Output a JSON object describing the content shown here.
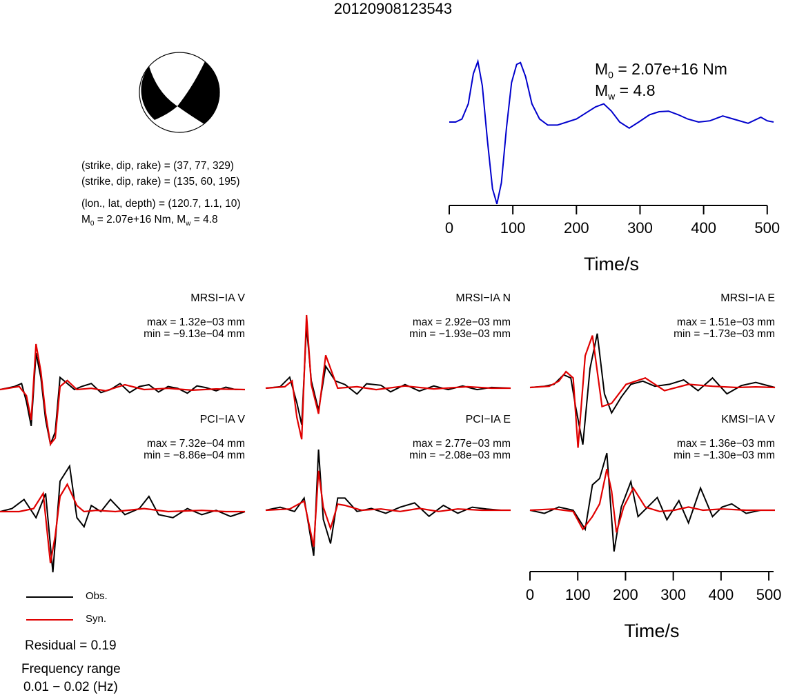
{
  "title": "20120908123543",
  "mechanism": {
    "planes": [
      {
        "strike": 37,
        "dip": 77,
        "rake": 329
      },
      {
        "strike": 135,
        "dip": 60,
        "rake": 195
      }
    ]
  },
  "info": {
    "plane1": "(strike, dip, rake) = (37, 77, 329)",
    "plane2": "(strike, dip, rake) = (135, 60, 195)",
    "location": "(lon., lat, depth) = (120.7, 1.1, 10)",
    "moment_prefix": "M",
    "moment_sub": "0",
    "moment_mid": " = 2.07e+16 Nm, M",
    "mw_sub": "w",
    "mw_value": " = 4.8"
  },
  "stf_labels": {
    "m0_prefix": "M",
    "m0_sub": "0",
    "m0_value": " = 2.07e+16 Nm",
    "mw_prefix": "M",
    "mw_sub": "w",
    "mw_value": " = 4.8"
  },
  "waveforms": [
    {
      "station": "MRSI−IA V",
      "max": "max = 1.32e−03 mm",
      "min": "min = −9.13e−04 mm"
    },
    {
      "station": "MRSI−IA N",
      "max": "max = 2.92e−03 mm",
      "min": "min = −1.93e−03 mm"
    },
    {
      "station": "MRSI−IA E",
      "max": "max = 1.51e−03 mm",
      "min": "min = −1.73e−03 mm"
    },
    {
      "station": "PCI−IA V",
      "max": "max = 7.32e−04 mm",
      "min": "min = −8.86e−04 mm"
    },
    {
      "station": "PCI−IA E",
      "max": "max = 2.77e−03 mm",
      "min": "min = −2.08e−03 mm"
    },
    {
      "station": "KMSI−IA V",
      "max": "max = 1.36e−03 mm",
      "min": "min = −1.30e−03 mm"
    }
  ],
  "legend": {
    "obs": "Obs.",
    "syn": "Syn."
  },
  "residual": "Residual = 0.19",
  "frequency_title": "Frequency range",
  "frequency_range": "0.01 − 0.02 (Hz)",
  "colors": {
    "observed": "#000000",
    "synthetic": "#e00000",
    "stf": "#0000cc",
    "beachball_fill": "#000000"
  },
  "chart_data": [
    {
      "type": "line",
      "title": "",
      "xlabel": "Time/s",
      "ylabel": "",
      "xlim": [
        0,
        510
      ],
      "xticks": [
        0,
        100,
        200,
        300,
        400,
        500
      ],
      "series": [
        {
          "values_x": [
            0,
            10,
            20,
            30,
            38,
            45,
            52,
            60,
            68,
            75,
            82,
            90,
            98,
            106,
            112,
            120,
            130,
            142,
            155,
            170,
            185,
            200,
            215,
            230,
            243,
            255,
            268,
            283,
            298,
            315,
            330,
            345,
            360,
            375,
            392,
            410,
            430,
            450,
            470,
            490,
            500,
            510
          ],
          "values_y": [
            0,
            0,
            0.05,
            0.3,
            0.8,
            1.0,
            0.6,
            -0.3,
            -1.1,
            -1.35,
            -1.0,
            -0.1,
            0.65,
            0.95,
            0.98,
            0.75,
            0.3,
            0.05,
            -0.05,
            -0.05,
            0.0,
            0.05,
            0.15,
            0.25,
            0.3,
            0.18,
            0.0,
            -0.1,
            0.0,
            0.12,
            0.17,
            0.18,
            0.12,
            0.05,
            0.0,
            0.02,
            0.1,
            0.04,
            -0.02,
            0.08,
            0.02,
            0.0
          ]
        }
      ]
    },
    {
      "type": "line",
      "title": "",
      "xlabel": "Time/s",
      "ylabel": "",
      "xlim": [
        0,
        510
      ],
      "xticks": [
        0,
        100,
        200,
        300,
        400,
        500
      ],
      "panels": [
        {
          "station": "MRSI−IA V",
          "obs_x": [
            0,
            30,
            45,
            55,
            65,
            75,
            85,
            95,
            105,
            115,
            125,
            140,
            155,
            170,
            190,
            210,
            230,
            250,
            270,
            290,
            310,
            330,
            350,
            370,
            390,
            410,
            430,
            450,
            470,
            490,
            510
          ],
          "obs_y": [
            0,
            0.05,
            0.1,
            -0.2,
            -0.6,
            0.6,
            0.2,
            -0.5,
            -0.9,
            -0.7,
            0.2,
            0.1,
            0.0,
            0.05,
            0.1,
            -0.05,
            0.0,
            0.1,
            -0.05,
            0.05,
            0.08,
            -0.04,
            0.05,
            0.02,
            -0.06,
            0.06,
            0.03,
            -0.02,
            0.04,
            0.0,
            0.0
          ],
          "syn_x": [
            0,
            40,
            55,
            65,
            75,
            85,
            95,
            105,
            115,
            125,
            140,
            160,
            190,
            220,
            260,
            300,
            350,
            400,
            450,
            510
          ],
          "syn_y": [
            0,
            0.05,
            -0.1,
            -0.5,
            0.75,
            0.3,
            -0.4,
            -0.9,
            -0.8,
            0.05,
            0.15,
            0.0,
            0.02,
            -0.02,
            0.08,
            0.0,
            0.02,
            -0.01,
            0.01,
            0.0
          ]
        },
        {
          "station": "MRSI−IA N",
          "obs_x": [
            0,
            30,
            50,
            65,
            75,
            85,
            95,
            110,
            125,
            145,
            165,
            190,
            210,
            240,
            260,
            290,
            320,
            350,
            380,
            410,
            440,
            470,
            510
          ],
          "obs_y": [
            0,
            0.02,
            0.15,
            -0.2,
            -0.5,
            0.85,
            0.1,
            -0.3,
            0.3,
            0.1,
            0.05,
            -0.08,
            0.06,
            0.04,
            -0.05,
            0.05,
            -0.04,
            0.03,
            -0.02,
            0.03,
            -0.02,
            0.01,
            0.0
          ],
          "syn_x": [
            0,
            40,
            55,
            65,
            75,
            85,
            95,
            110,
            125,
            150,
            190,
            230,
            290,
            350,
            420,
            470,
            510
          ],
          "syn_y": [
            0,
            0.02,
            0.1,
            -0.4,
            -0.7,
            1.0,
            0.05,
            -0.35,
            0.45,
            0.0,
            0.02,
            -0.02,
            0.03,
            -0.01,
            0.02,
            0.0,
            0.0
          ],
          "offset_x": 385
        },
        {
          "station": "MRSI−IA E",
          "obs_x": [
            0,
            30,
            50,
            70,
            85,
            95,
            110,
            125,
            140,
            155,
            170,
            190,
            210,
            235,
            260,
            290,
            320,
            350,
            380,
            410,
            440,
            470,
            510
          ],
          "obs_y": [
            0,
            0.02,
            0.05,
            0.2,
            0.15,
            -0.3,
            -0.9,
            0.3,
            0.85,
            -0.1,
            -0.4,
            -0.15,
            0.05,
            0.1,
            0.02,
            0.05,
            0.12,
            -0.05,
            0.15,
            -0.1,
            0.03,
            0.08,
            0.0
          ],
          "syn_x": [
            0,
            40,
            60,
            75,
            90,
            100,
            115,
            130,
            150,
            170,
            200,
            240,
            280,
            330,
            380,
            430,
            470,
            510
          ],
          "syn_y": [
            0,
            0.02,
            0.1,
            0.25,
            0.15,
            -0.95,
            0.5,
            0.82,
            -0.3,
            -0.25,
            0.05,
            0.15,
            -0.05,
            0.05,
            0.02,
            0.0,
            0.01,
            0.0
          ]
        },
        {
          "station": "PCI−IA V",
          "obs_x": [
            0,
            25,
            50,
            75,
            95,
            110,
            125,
            145,
            160,
            175,
            190,
            210,
            230,
            260,
            290,
            310,
            330,
            360,
            390,
            420,
            450,
            480,
            510
          ],
          "obs_y": [
            0,
            0.05,
            0.2,
            -0.1,
            0.3,
            -1.0,
            0.5,
            0.75,
            -0.1,
            -0.25,
            0.1,
            0.0,
            0.2,
            -0.05,
            0.05,
            0.25,
            -0.05,
            -0.1,
            0.05,
            -0.05,
            0.02,
            -0.08,
            0.0
          ],
          "syn_x": [
            0,
            40,
            70,
            90,
            105,
            115,
            125,
            140,
            160,
            175,
            200,
            240,
            300,
            350,
            420,
            470,
            510
          ],
          "syn_y": [
            0,
            0.0,
            0.05,
            0.3,
            -0.85,
            -0.4,
            0.25,
            0.45,
            0.1,
            0.0,
            0.02,
            0.0,
            0.05,
            0.0,
            0.02,
            0.0,
            0.0
          ]
        },
        {
          "station": "PCI−IA E",
          "obs_x": [
            0,
            30,
            60,
            80,
            100,
            110,
            120,
            135,
            150,
            165,
            190,
            220,
            250,
            280,
            310,
            340,
            370,
            400,
            430,
            460,
            490,
            510
          ],
          "obs_y": [
            0,
            0.05,
            -0.02,
            0.2,
            -0.75,
            1.0,
            -0.15,
            -0.55,
            0.2,
            0.2,
            -0.02,
            0.03,
            -0.05,
            0.05,
            0.12,
            -0.1,
            0.08,
            -0.05,
            0.05,
            0.02,
            0.0,
            0.0
          ],
          "syn_x": [
            0,
            50,
            80,
            100,
            110,
            120,
            135,
            150,
            165,
            200,
            240,
            280,
            320,
            360,
            400,
            450,
            510
          ],
          "syn_y": [
            0,
            0.02,
            0.15,
            -0.6,
            0.65,
            0.05,
            -0.3,
            0.1,
            0.08,
            0.0,
            0.02,
            -0.02,
            0.03,
            -0.02,
            0.02,
            0.0,
            0.0
          ]
        },
        {
          "station": "KMSI−IA V",
          "obs_x": [
            0,
            30,
            60,
            90,
            115,
            130,
            145,
            160,
            175,
            190,
            210,
            225,
            245,
            265,
            285,
            310,
            330,
            355,
            380,
            400,
            420,
            450,
            480,
            510
          ],
          "obs_y": [
            0,
            -0.05,
            0.05,
            0.0,
            -0.3,
            0.4,
            0.5,
            0.9,
            -0.65,
            0.05,
            0.45,
            -0.1,
            0.05,
            0.2,
            -0.15,
            0.15,
            -0.2,
            0.35,
            -0.1,
            0.05,
            0.1,
            -0.05,
            0.0,
            0.0
          ],
          "syn_x": [
            0,
            50,
            90,
            110,
            130,
            145,
            160,
            170,
            180,
            195,
            215,
            240,
            270,
            300,
            330,
            360,
            400,
            450,
            510
          ],
          "syn_y": [
            0,
            0.02,
            -0.02,
            -0.3,
            -0.1,
            0.1,
            0.65,
            0.3,
            -0.35,
            0.05,
            0.35,
            0.05,
            -0.02,
            0.0,
            0.05,
            0.0,
            0.02,
            0.0,
            0.0
          ]
        }
      ]
    }
  ]
}
